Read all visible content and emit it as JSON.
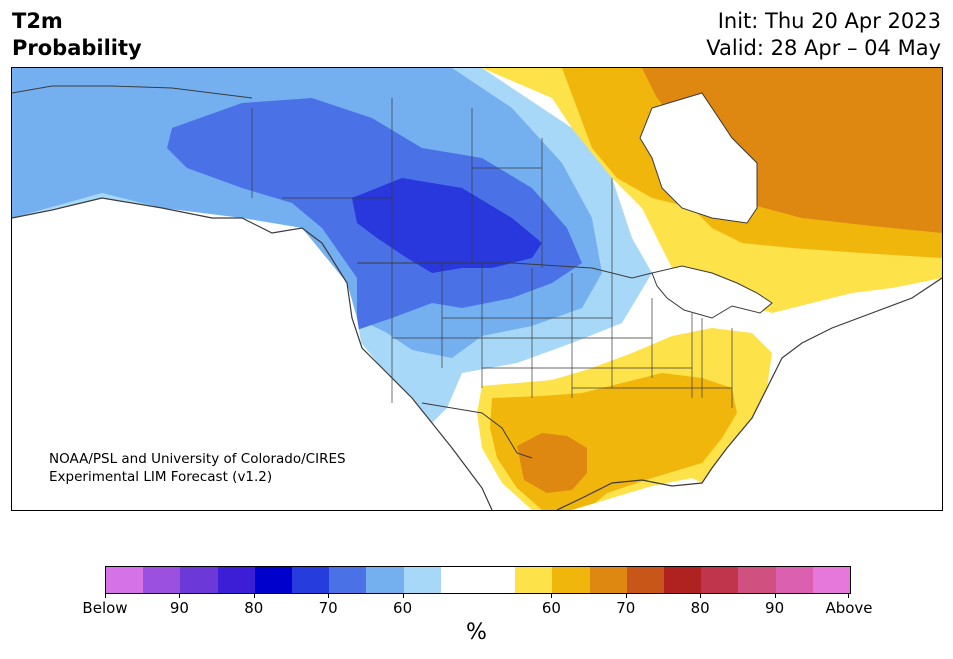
{
  "header": {
    "title_line1": "T2m",
    "title_line2": "Probability",
    "init": "Init: Thu 20 Apr 2023",
    "valid": "Valid: 28 Apr – 04 May"
  },
  "map": {
    "region": "North America",
    "credit_line1": "NOAA/PSL and University of Colorado/CIRES",
    "credit_line2": "Experimental LIM Forecast (v1.2)",
    "below_colors": {
      "below60": "#a8d8f8",
      "below70": "#74b0f0",
      "below80": "#4a72e6",
      "below90": "#2838dc"
    },
    "above_colors": {
      "above60": "#fde24a",
      "above70": "#f1b60c",
      "above80": "#de8812"
    },
    "land_color": "#ffffff",
    "water_color": "#ffffff",
    "border_color": "#3a3a3a"
  },
  "colorbar": {
    "colors": [
      "#d672e8",
      "#9c50e0",
      "#6c38d8",
      "#3c1ed6",
      "#0000cc",
      "#263cdc",
      "#4a72e6",
      "#74b0f0",
      "#a8d8f8",
      "#ffffff",
      "#ffffff",
      "#fde24a",
      "#f1b60c",
      "#de8812",
      "#c85618",
      "#b02220",
      "#c0344c",
      "#d05080",
      "#dc60b0",
      "#e678dc"
    ],
    "tick_labels": [
      "Below",
      "90",
      "80",
      "70",
      "60",
      "60",
      "70",
      "80",
      "90",
      "Above"
    ],
    "unit": "%"
  }
}
